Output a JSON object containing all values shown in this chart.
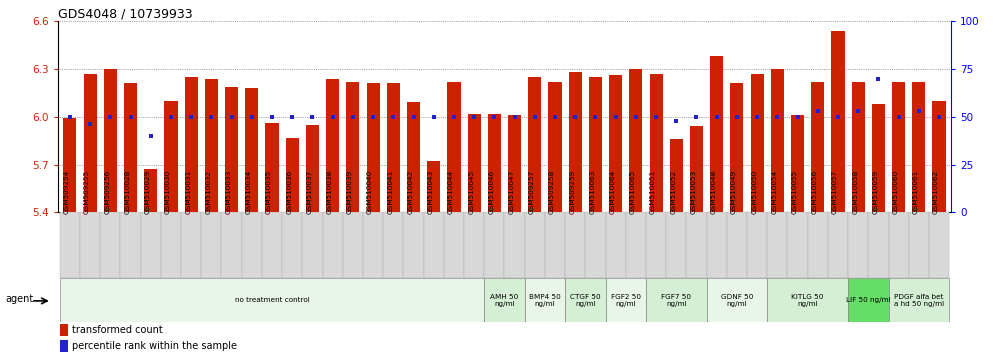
{
  "title": "GDS4048 / 10739933",
  "ylim": [
    5.4,
    6.6
  ],
  "yticks": [
    5.4,
    5.7,
    6.0,
    6.3,
    6.6
  ],
  "y2lim": [
    0,
    100
  ],
  "y2ticks": [
    0,
    25,
    50,
    75,
    100
  ],
  "bar_color": "#cc2200",
  "dot_color": "#2222cc",
  "samples": [
    "GSM509254",
    "GSM509255",
    "GSM509256",
    "GSM510028",
    "GSM510029",
    "GSM510030",
    "GSM510031",
    "GSM510032",
    "GSM510033",
    "GSM510034",
    "GSM510035",
    "GSM510036",
    "GSM510037",
    "GSM510038",
    "GSM510039",
    "GSM510040",
    "GSM510041",
    "GSM510042",
    "GSM510043",
    "GSM510044",
    "GSM510045",
    "GSM510046",
    "GSM510047",
    "GSM509257",
    "GSM509258",
    "GSM509259",
    "GSM510063",
    "GSM510064",
    "GSM510065",
    "GSM510051",
    "GSM510052",
    "GSM510053",
    "GSM510048",
    "GSM510049",
    "GSM510050",
    "GSM510054",
    "GSM510055",
    "GSM510056",
    "GSM510057",
    "GSM510058",
    "GSM510059",
    "GSM510060",
    "GSM510061",
    "GSM510062"
  ],
  "bar_values": [
    5.99,
    6.27,
    6.3,
    6.21,
    5.67,
    6.1,
    6.25,
    6.24,
    6.19,
    6.18,
    5.96,
    5.87,
    5.95,
    6.24,
    6.22,
    6.21,
    6.21,
    6.09,
    5.72,
    6.22,
    6.02,
    6.02,
    6.01,
    6.25,
    6.22,
    6.28,
    6.25,
    6.26,
    6.3,
    6.27,
    5.86,
    5.94,
    6.38,
    6.21,
    6.27,
    6.3,
    6.01,
    6.22,
    6.54,
    6.22,
    6.08,
    6.22,
    6.22,
    6.1
  ],
  "dot_values": [
    50,
    46,
    50,
    50,
    40,
    50,
    50,
    50,
    50,
    50,
    50,
    50,
    50,
    50,
    50,
    50,
    50,
    50,
    50,
    50,
    50,
    50,
    50,
    50,
    50,
    50,
    50,
    50,
    50,
    50,
    48,
    50,
    50,
    50,
    50,
    50,
    50,
    53,
    50,
    53,
    70,
    50,
    53,
    50
  ],
  "agent_groups": [
    {
      "label": "no treatment control",
      "start": 0,
      "end": 21,
      "color": "#e8f5e8"
    },
    {
      "label": "AMH 50\nng/ml",
      "start": 21,
      "end": 23,
      "color": "#d4efd4"
    },
    {
      "label": "BMP4 50\nng/ml",
      "start": 23,
      "end": 25,
      "color": "#e8f5e8"
    },
    {
      "label": "CTGF 50\nng/ml",
      "start": 25,
      "end": 27,
      "color": "#d4efd4"
    },
    {
      "label": "FGF2 50\nng/ml",
      "start": 27,
      "end": 29,
      "color": "#e8f5e8"
    },
    {
      "label": "FGF7 50\nng/ml",
      "start": 29,
      "end": 32,
      "color": "#d4efd4"
    },
    {
      "label": "GDNF 50\nng/ml",
      "start": 32,
      "end": 35,
      "color": "#e8f5e8"
    },
    {
      "label": "KITLG 50\nng/ml",
      "start": 35,
      "end": 39,
      "color": "#d4efd4"
    },
    {
      "label": "LIF 50 ng/ml",
      "start": 39,
      "end": 41,
      "color": "#66dd66"
    },
    {
      "label": "PDGF alfa bet\na hd 50 ng/ml",
      "start": 41,
      "end": 44,
      "color": "#d4efd4"
    }
  ],
  "legend_bar_label": "transformed count",
  "legend_dot_label": "percentile rank within the sample",
  "agent_label": "agent",
  "bg_color": "#ffffff",
  "plot_bg": "#ffffff"
}
